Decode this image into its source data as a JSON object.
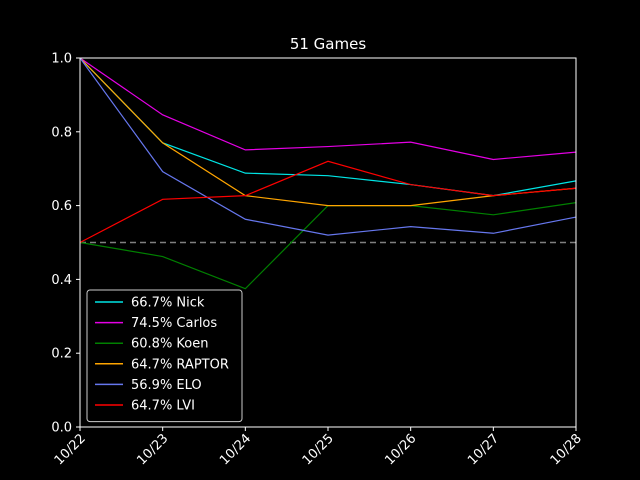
{
  "chart_data": {
    "type": "line",
    "title": "51 Games",
    "xlabel": "",
    "ylabel": "",
    "categories": [
      "10/22",
      "10/23",
      "10/24",
      "10/25",
      "10/26",
      "10/27",
      "10/28"
    ],
    "ylim": [
      0.0,
      1.0
    ],
    "yticks": [
      "0.0",
      "0.2",
      "0.4",
      "0.6",
      "0.8",
      "1.0"
    ],
    "reference_line": 0.5,
    "grid": false,
    "legend_position": "lower-left",
    "background": "#000000",
    "axis_color": "#ffffff",
    "reference_color": "#808080",
    "series": [
      {
        "name": "66.7% Nick",
        "color": "#00e5e5",
        "values": [
          1.0,
          0.77,
          0.688,
          0.681,
          0.657,
          0.627,
          0.667
        ]
      },
      {
        "name": "74.5% Carlos",
        "color": "#e500e5",
        "values": [
          1.0,
          0.846,
          0.751,
          0.76,
          0.772,
          0.725,
          0.745
        ]
      },
      {
        "name": "60.8% Koen",
        "color": "#008000",
        "values": [
          0.5,
          0.462,
          0.375,
          0.6,
          0.6,
          0.575,
          0.608
        ]
      },
      {
        "name": "64.7% RAPTOR",
        "color": "#ffa500",
        "values": [
          1.0,
          0.77,
          0.627,
          0.6,
          0.6,
          0.627,
          0.647
        ]
      },
      {
        "name": "56.9% ELO",
        "color": "#6677ee",
        "values": [
          1.0,
          0.692,
          0.563,
          0.52,
          0.543,
          0.525,
          0.569
        ]
      },
      {
        "name": "64.7% LVI",
        "color": "#ff0000",
        "values": [
          0.5,
          0.617,
          0.627,
          0.72,
          0.657,
          0.627,
          0.647
        ]
      }
    ]
  }
}
